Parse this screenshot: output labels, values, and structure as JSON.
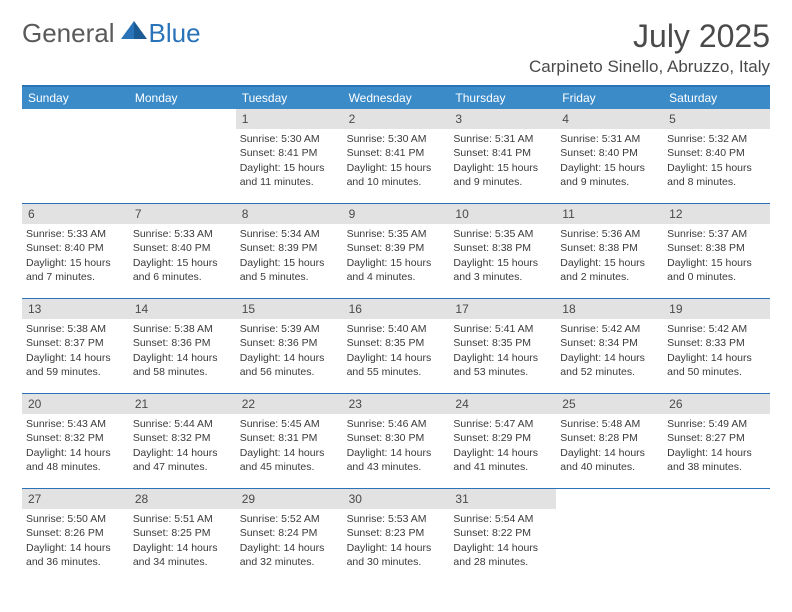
{
  "brand": {
    "part1": "General",
    "part2": "Blue"
  },
  "title": "July 2025",
  "location": "Carpineto Sinello, Abruzzo, Italy",
  "colors": {
    "header_bar": "#3b8bc9",
    "rule": "#2a73b8",
    "daynum_bg": "#e2e2e2",
    "text": "#3a3a3a"
  },
  "day_headers": [
    "Sunday",
    "Monday",
    "Tuesday",
    "Wednesday",
    "Thursday",
    "Friday",
    "Saturday"
  ],
  "weeks": [
    [
      {
        "n": "",
        "sr": "",
        "ss": "",
        "dl1": "",
        "dl2": ""
      },
      {
        "n": "",
        "sr": "",
        "ss": "",
        "dl1": "",
        "dl2": ""
      },
      {
        "n": "1",
        "sr": "Sunrise: 5:30 AM",
        "ss": "Sunset: 8:41 PM",
        "dl1": "Daylight: 15 hours",
        "dl2": "and 11 minutes."
      },
      {
        "n": "2",
        "sr": "Sunrise: 5:30 AM",
        "ss": "Sunset: 8:41 PM",
        "dl1": "Daylight: 15 hours",
        "dl2": "and 10 minutes."
      },
      {
        "n": "3",
        "sr": "Sunrise: 5:31 AM",
        "ss": "Sunset: 8:41 PM",
        "dl1": "Daylight: 15 hours",
        "dl2": "and 9 minutes."
      },
      {
        "n": "4",
        "sr": "Sunrise: 5:31 AM",
        "ss": "Sunset: 8:40 PM",
        "dl1": "Daylight: 15 hours",
        "dl2": "and 9 minutes."
      },
      {
        "n": "5",
        "sr": "Sunrise: 5:32 AM",
        "ss": "Sunset: 8:40 PM",
        "dl1": "Daylight: 15 hours",
        "dl2": "and 8 minutes."
      }
    ],
    [
      {
        "n": "6",
        "sr": "Sunrise: 5:33 AM",
        "ss": "Sunset: 8:40 PM",
        "dl1": "Daylight: 15 hours",
        "dl2": "and 7 minutes."
      },
      {
        "n": "7",
        "sr": "Sunrise: 5:33 AM",
        "ss": "Sunset: 8:40 PM",
        "dl1": "Daylight: 15 hours",
        "dl2": "and 6 minutes."
      },
      {
        "n": "8",
        "sr": "Sunrise: 5:34 AM",
        "ss": "Sunset: 8:39 PM",
        "dl1": "Daylight: 15 hours",
        "dl2": "and 5 minutes."
      },
      {
        "n": "9",
        "sr": "Sunrise: 5:35 AM",
        "ss": "Sunset: 8:39 PM",
        "dl1": "Daylight: 15 hours",
        "dl2": "and 4 minutes."
      },
      {
        "n": "10",
        "sr": "Sunrise: 5:35 AM",
        "ss": "Sunset: 8:38 PM",
        "dl1": "Daylight: 15 hours",
        "dl2": "and 3 minutes."
      },
      {
        "n": "11",
        "sr": "Sunrise: 5:36 AM",
        "ss": "Sunset: 8:38 PM",
        "dl1": "Daylight: 15 hours",
        "dl2": "and 2 minutes."
      },
      {
        "n": "12",
        "sr": "Sunrise: 5:37 AM",
        "ss": "Sunset: 8:38 PM",
        "dl1": "Daylight: 15 hours",
        "dl2": "and 0 minutes."
      }
    ],
    [
      {
        "n": "13",
        "sr": "Sunrise: 5:38 AM",
        "ss": "Sunset: 8:37 PM",
        "dl1": "Daylight: 14 hours",
        "dl2": "and 59 minutes."
      },
      {
        "n": "14",
        "sr": "Sunrise: 5:38 AM",
        "ss": "Sunset: 8:36 PM",
        "dl1": "Daylight: 14 hours",
        "dl2": "and 58 minutes."
      },
      {
        "n": "15",
        "sr": "Sunrise: 5:39 AM",
        "ss": "Sunset: 8:36 PM",
        "dl1": "Daylight: 14 hours",
        "dl2": "and 56 minutes."
      },
      {
        "n": "16",
        "sr": "Sunrise: 5:40 AM",
        "ss": "Sunset: 8:35 PM",
        "dl1": "Daylight: 14 hours",
        "dl2": "and 55 minutes."
      },
      {
        "n": "17",
        "sr": "Sunrise: 5:41 AM",
        "ss": "Sunset: 8:35 PM",
        "dl1": "Daylight: 14 hours",
        "dl2": "and 53 minutes."
      },
      {
        "n": "18",
        "sr": "Sunrise: 5:42 AM",
        "ss": "Sunset: 8:34 PM",
        "dl1": "Daylight: 14 hours",
        "dl2": "and 52 minutes."
      },
      {
        "n": "19",
        "sr": "Sunrise: 5:42 AM",
        "ss": "Sunset: 8:33 PM",
        "dl1": "Daylight: 14 hours",
        "dl2": "and 50 minutes."
      }
    ],
    [
      {
        "n": "20",
        "sr": "Sunrise: 5:43 AM",
        "ss": "Sunset: 8:32 PM",
        "dl1": "Daylight: 14 hours",
        "dl2": "and 48 minutes."
      },
      {
        "n": "21",
        "sr": "Sunrise: 5:44 AM",
        "ss": "Sunset: 8:32 PM",
        "dl1": "Daylight: 14 hours",
        "dl2": "and 47 minutes."
      },
      {
        "n": "22",
        "sr": "Sunrise: 5:45 AM",
        "ss": "Sunset: 8:31 PM",
        "dl1": "Daylight: 14 hours",
        "dl2": "and 45 minutes."
      },
      {
        "n": "23",
        "sr": "Sunrise: 5:46 AM",
        "ss": "Sunset: 8:30 PM",
        "dl1": "Daylight: 14 hours",
        "dl2": "and 43 minutes."
      },
      {
        "n": "24",
        "sr": "Sunrise: 5:47 AM",
        "ss": "Sunset: 8:29 PM",
        "dl1": "Daylight: 14 hours",
        "dl2": "and 41 minutes."
      },
      {
        "n": "25",
        "sr": "Sunrise: 5:48 AM",
        "ss": "Sunset: 8:28 PM",
        "dl1": "Daylight: 14 hours",
        "dl2": "and 40 minutes."
      },
      {
        "n": "26",
        "sr": "Sunrise: 5:49 AM",
        "ss": "Sunset: 8:27 PM",
        "dl1": "Daylight: 14 hours",
        "dl2": "and 38 minutes."
      }
    ],
    [
      {
        "n": "27",
        "sr": "Sunrise: 5:50 AM",
        "ss": "Sunset: 8:26 PM",
        "dl1": "Daylight: 14 hours",
        "dl2": "and 36 minutes."
      },
      {
        "n": "28",
        "sr": "Sunrise: 5:51 AM",
        "ss": "Sunset: 8:25 PM",
        "dl1": "Daylight: 14 hours",
        "dl2": "and 34 minutes."
      },
      {
        "n": "29",
        "sr": "Sunrise: 5:52 AM",
        "ss": "Sunset: 8:24 PM",
        "dl1": "Daylight: 14 hours",
        "dl2": "and 32 minutes."
      },
      {
        "n": "30",
        "sr": "Sunrise: 5:53 AM",
        "ss": "Sunset: 8:23 PM",
        "dl1": "Daylight: 14 hours",
        "dl2": "and 30 minutes."
      },
      {
        "n": "31",
        "sr": "Sunrise: 5:54 AM",
        "ss": "Sunset: 8:22 PM",
        "dl1": "Daylight: 14 hours",
        "dl2": "and 28 minutes."
      },
      {
        "n": "",
        "sr": "",
        "ss": "",
        "dl1": "",
        "dl2": ""
      },
      {
        "n": "",
        "sr": "",
        "ss": "",
        "dl1": "",
        "dl2": ""
      }
    ]
  ]
}
